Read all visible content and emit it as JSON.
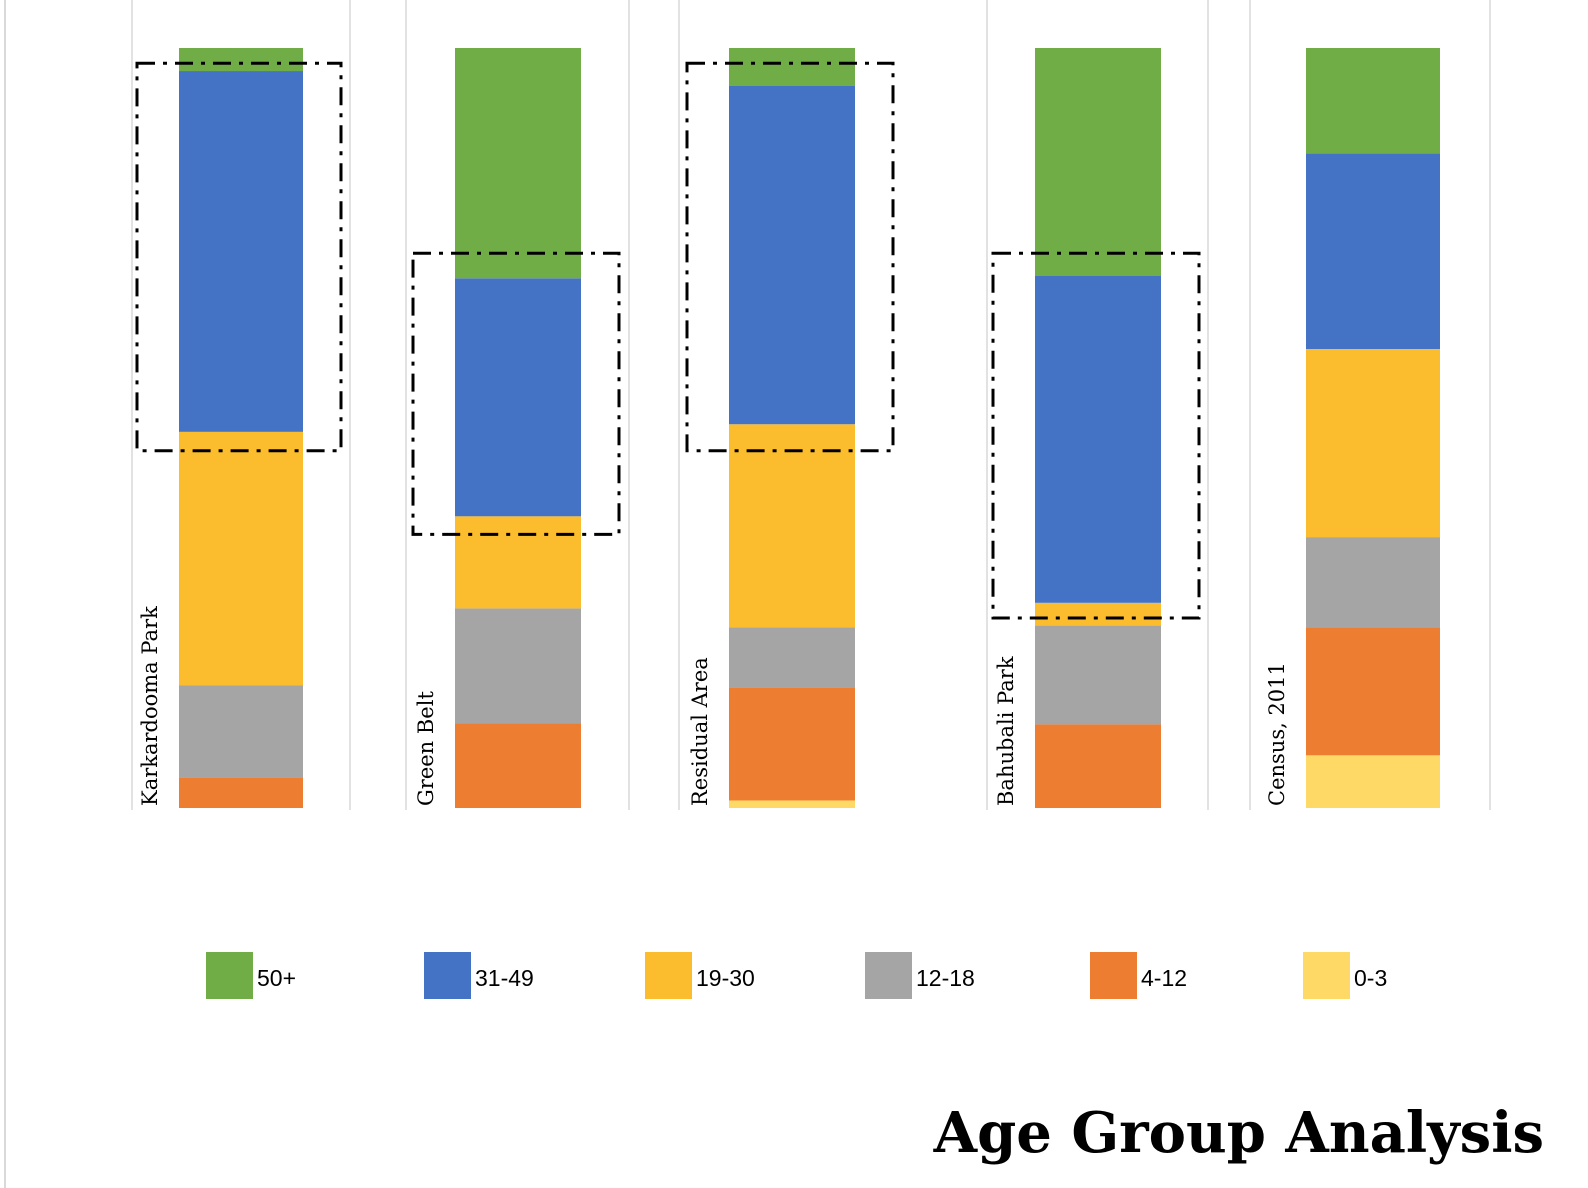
{
  "chart_data": {
    "type": "bar",
    "stacked": true,
    "orientation": "vertical",
    "title": "Age Group Analysis",
    "categories": [
      "Karkardooma Park",
      "Green Belt",
      "Residual Area",
      "Bahubali Park",
      "Census, 2011"
    ],
    "series": [
      {
        "name": "0-3",
        "color": "#FFD966",
        "values": [
          0,
          0,
          1,
          0,
          7
        ]
      },
      {
        "name": "4-12",
        "color": "#ED7D31",
        "values": [
          4,
          11,
          15,
          11,
          17
        ]
      },
      {
        "name": "12-18",
        "color": "#A5A5A5",
        "values": [
          12,
          15,
          8,
          13,
          12
        ]
      },
      {
        "name": "19-30",
        "color": "#FBBD2E",
        "values": [
          33,
          12,
          27,
          3,
          25
        ]
      },
      {
        "name": "31-49",
        "color": "#4472C4",
        "values": [
          47,
          31,
          45,
          43,
          26
        ]
      },
      {
        "name": "50+",
        "color": "#70AD47",
        "values": [
          3,
          30,
          5,
          30,
          14
        ]
      }
    ],
    "legend_order": [
      "50+",
      "31-49",
      "19-30",
      "12-18",
      "4-12",
      "0-3"
    ],
    "highlight_boxes": [
      {
        "category": "Karkardooma Park",
        "from_value": 47,
        "to_value": 98
      },
      {
        "category": "Green Belt",
        "from_value": 36,
        "to_value": 73
      },
      {
        "category": "Residual Area",
        "from_value": 47,
        "to_value": 98
      },
      {
        "category": "Bahubali Park",
        "from_value": 25,
        "to_value": 73
      }
    ],
    "ylim": [
      0,
      100
    ],
    "grid": true,
    "legend": "bottom",
    "xlabel": "",
    "ylabel": ""
  }
}
